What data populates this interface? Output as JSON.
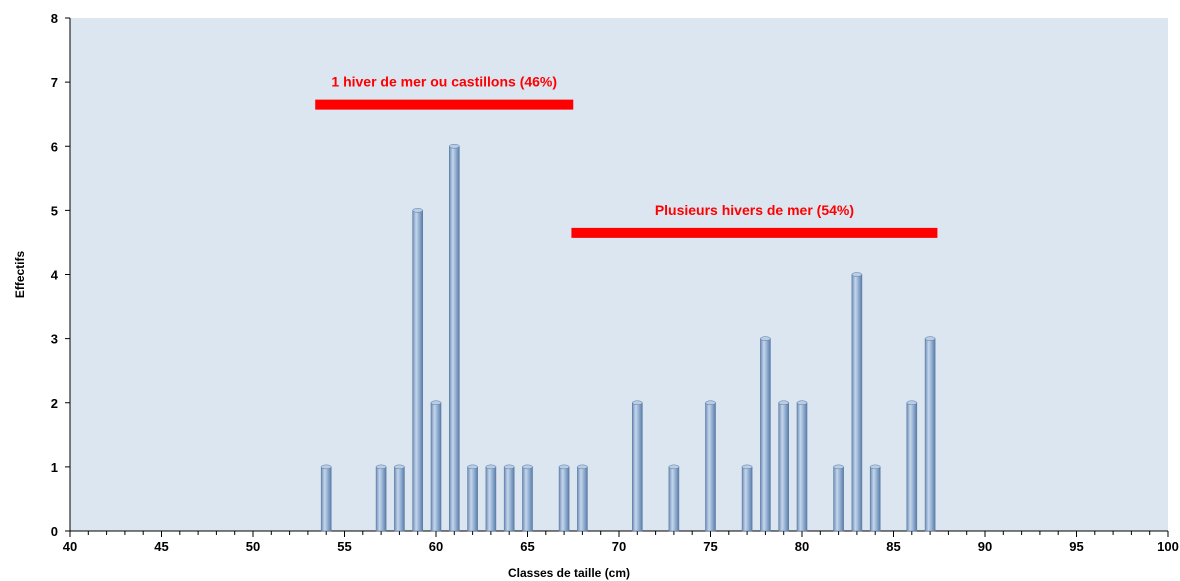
{
  "chart_data": {
    "type": "bar",
    "xlabel": "Classes de taille (cm)",
    "ylabel": "Effectifs",
    "xlim": [
      40,
      100
    ],
    "ylim": [
      0,
      8
    ],
    "x_tick_labels": [
      "40",
      "45",
      "50",
      "55",
      "60",
      "65",
      "70",
      "75",
      "80",
      "85",
      "90",
      "95",
      "100"
    ],
    "y_tick_labels": [
      "0",
      "1",
      "2",
      "3",
      "4",
      "5",
      "6",
      "7",
      "8"
    ],
    "x": [
      54,
      57,
      58,
      59,
      60,
      61,
      62,
      63,
      64,
      65,
      67,
      68,
      71,
      73,
      75,
      77,
      78,
      79,
      80,
      82,
      83,
      84,
      86,
      87
    ],
    "values": [
      1,
      1,
      1,
      5,
      2,
      6,
      1,
      1,
      1,
      1,
      1,
      1,
      2,
      1,
      2,
      1,
      3,
      2,
      2,
      1,
      4,
      1,
      2,
      3
    ],
    "grid": false,
    "colors": {
      "plot_background": "#dce6f1",
      "bar": "#95b3d7",
      "annotation": "#ff0000"
    },
    "annotations": [
      {
        "text": "1 hiver de mer ou castillons (46%)",
        "x_start": 53.4,
        "x_end": 67.5,
        "y": 6.65
      },
      {
        "text": "Plusieurs hivers de mer (54%)",
        "x_start": 67.4,
        "x_end": 87.4,
        "y": 4.65
      }
    ]
  }
}
